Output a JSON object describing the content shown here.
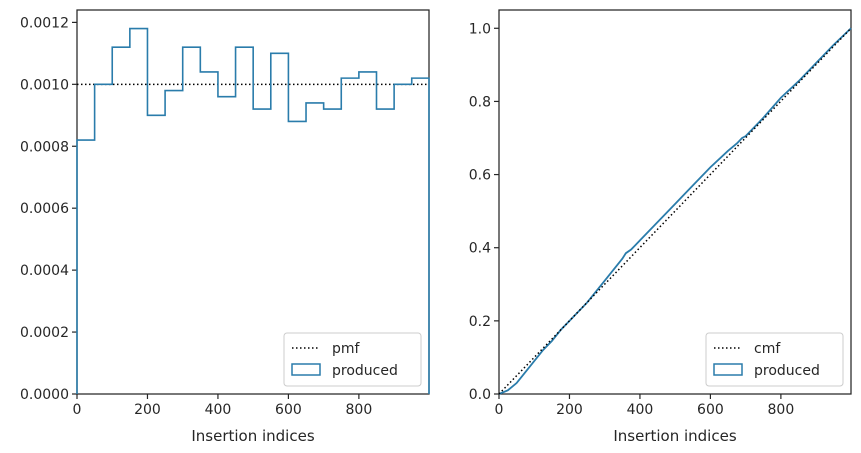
{
  "colors": {
    "produced": "#2a7cab",
    "reference": "#000000",
    "frame": "#262626",
    "legend_border": "#cccccc"
  },
  "chart_data": [
    {
      "type": "step-histogram",
      "xlabel": "Insertion indices",
      "ylabel": "",
      "xlim": [
        0,
        999
      ],
      "ylim": [
        0,
        0.00124
      ],
      "xticks": [
        "0",
        "200",
        "400",
        "600",
        "800"
      ],
      "yticks": [
        "0.0000",
        "0.0002",
        "0.0004",
        "0.0006",
        "0.0008",
        "0.0010",
        "0.0012"
      ],
      "reference": {
        "name": "pmf",
        "style": "dotted",
        "value": 0.001
      },
      "series": [
        {
          "name": "produced",
          "bin_edges": [
            0,
            50,
            100,
            150,
            200,
            250,
            300,
            350,
            400,
            450,
            500,
            550,
            600,
            650,
            700,
            750,
            800,
            850,
            900,
            950,
            999
          ],
          "values": [
            0.00082,
            0.001,
            0.00112,
            0.00118,
            0.0009,
            0.00098,
            0.00112,
            0.00104,
            0.00096,
            0.00112,
            0.00092,
            0.0011,
            0.00088,
            0.00094,
            0.00092,
            0.00102,
            0.00104,
            0.00092,
            0.001,
            0.00102
          ]
        }
      ],
      "legend": "bottom-right",
      "grid": false
    },
    {
      "type": "line",
      "xlabel": "Insertion indices",
      "ylabel": "",
      "xlim": [
        0,
        999
      ],
      "ylim": [
        0,
        1.05
      ],
      "xticks": [
        "0",
        "200",
        "400",
        "600",
        "800"
      ],
      "yticks": [
        "0.0",
        "0.2",
        "0.4",
        "0.6",
        "0.8",
        "1.0"
      ],
      "reference": {
        "name": "cmf",
        "style": "dotted",
        "from": [
          0,
          0
        ],
        "to": [
          999,
          1.0
        ]
      },
      "series": [
        {
          "name": "produced",
          "x": [
            0,
            25,
            50,
            75,
            100,
            125,
            150,
            175,
            200,
            250,
            300,
            350,
            360,
            375,
            400,
            450,
            500,
            520,
            550,
            600,
            650,
            675,
            690,
            700,
            750,
            800,
            850,
            900,
            950,
            999
          ],
          "y": [
            0,
            0.01,
            0.03,
            0.06,
            0.09,
            0.12,
            0.145,
            0.175,
            0.2,
            0.25,
            0.31,
            0.37,
            0.385,
            0.395,
            0.42,
            0.47,
            0.52,
            0.54,
            0.57,
            0.62,
            0.665,
            0.685,
            0.7,
            0.705,
            0.755,
            0.81,
            0.855,
            0.905,
            0.955,
            1.0
          ]
        }
      ],
      "legend": "bottom-right",
      "grid": false
    }
  ]
}
